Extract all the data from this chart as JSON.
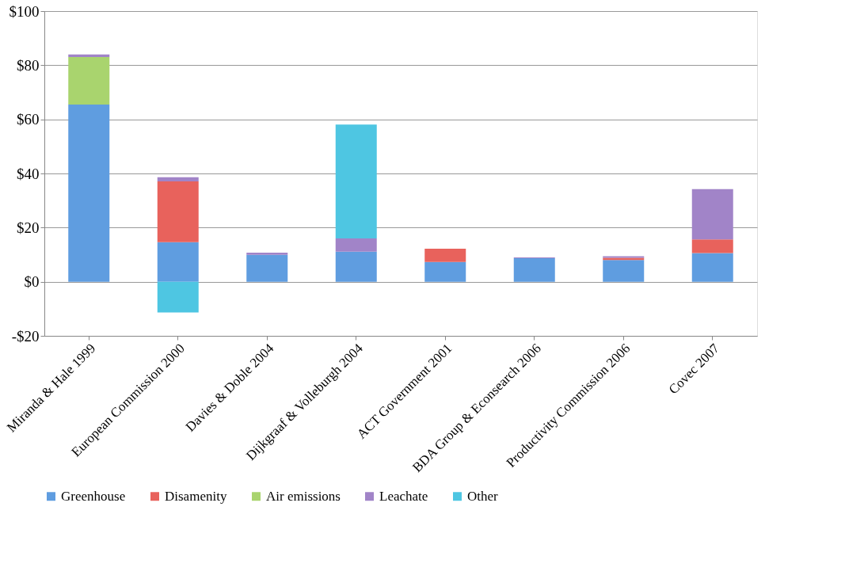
{
  "chart_data": {
    "type": "bar",
    "stacked": true,
    "categories": [
      "Miranda & Hale 1999",
      "European Commission 2000",
      "Davies & Doble 2004",
      "Dijkgraaf & Volleburgh 2004",
      "ACT Government 2001",
      "BDA Group & Econsearch 2006",
      "Productivity Commission 2006",
      "Covec 2007"
    ],
    "series": [
      {
        "name": "Greenhouse",
        "color": "#5f9de0",
        "values": [
          65.5,
          14.6,
          9.9,
          11.1,
          7.3,
          8.7,
          8.0,
          10.6
        ]
      },
      {
        "name": "Disamenity",
        "color": "#e8625c",
        "values": [
          null,
          22.5,
          null,
          null,
          4.9,
          null,
          0.8,
          5.0
        ]
      },
      {
        "name": "Air emissions",
        "color": "#a9d46e",
        "values": [
          17.5,
          null,
          null,
          null,
          null,
          null,
          null,
          null
        ]
      },
      {
        "name": "Leachate",
        "color": "#a184c8",
        "values": [
          1.0,
          1.5,
          0.8,
          4.9,
          null,
          0.3,
          0.6,
          18.6
        ]
      },
      {
        "name": "Other",
        "color": "#4ec6e2",
        "values": [
          null,
          -11.4,
          null,
          42.1,
          null,
          null,
          null,
          null
        ]
      }
    ],
    "ylim": [
      -20,
      100
    ],
    "yticks": [
      {
        "value": -20,
        "label": "-$20"
      },
      {
        "value": 0,
        "label": "$0"
      },
      {
        "value": 20,
        "label": "$20"
      },
      {
        "value": 40,
        "label": "$40"
      },
      {
        "value": 60,
        "label": "$60"
      },
      {
        "value": 80,
        "label": "$80"
      },
      {
        "value": 100,
        "label": "$100"
      }
    ],
    "grid": "y",
    "legend": "bottom"
  }
}
